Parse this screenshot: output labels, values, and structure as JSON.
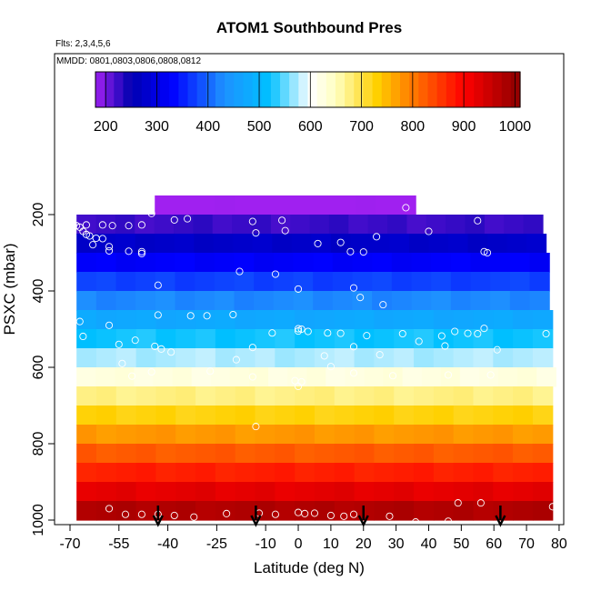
{
  "chart_data": {
    "type": "heatmap",
    "title": "ATOM1 Southbound Pres",
    "flights_note": "Flts: 2,3,4,5,6",
    "dates_note": "MMDD: 0801,0803,0806,0808,0812",
    "xlabel": "Latitude (deg N)",
    "ylabel": "PSXC (mbar)",
    "xlim": [
      -70,
      80
    ],
    "ylim": [
      1000,
      100
    ],
    "x_ticks": [
      -70,
      -55,
      -40,
      -25,
      -10,
      0,
      10,
      20,
      30,
      40,
      50,
      60,
      70,
      80
    ],
    "x_tick_labels": [
      "-70",
      "-55",
      "-40",
      "-25",
      "-10",
      "0",
      "10",
      "20",
      "30",
      "40",
      "50",
      "60",
      "70",
      "80"
    ],
    "y_ticks": [
      200,
      400,
      600,
      800,
      1000
    ],
    "y_tick_labels": [
      "200",
      "400",
      "600",
      "800",
      "1000"
    ],
    "colorbar": {
      "range": [
        180,
        1010
      ],
      "ticks": [
        200,
        300,
        400,
        500,
        600,
        700,
        800,
        900,
        1000
      ],
      "tick_labels": [
        "200",
        "300",
        "400",
        "500",
        "600",
        "700",
        "800",
        "900",
        "1000"
      ],
      "stops": [
        [
          180,
          "#a020f0"
        ],
        [
          250,
          "#0000b0"
        ],
        [
          330,
          "#0000ff"
        ],
        [
          430,
          "#1e90ff"
        ],
        [
          520,
          "#00c0ff"
        ],
        [
          600,
          "#ffffff"
        ],
        [
          650,
          "#ffffc0"
        ],
        [
          730,
          "#ffd000"
        ],
        [
          820,
          "#ff6000"
        ],
        [
          900,
          "#ff0000"
        ],
        [
          1010,
          "#8b0000"
        ]
      ]
    },
    "bands": [
      {
        "p_lo": 150,
        "p_hi": 200,
        "lat_lo": -44,
        "lat_hi": 36
      },
      {
        "p_lo": 200,
        "p_hi": 250,
        "lat_lo": -68,
        "lat_hi": 75
      },
      {
        "p_lo": 250,
        "p_hi": 300,
        "lat_lo": -68,
        "lat_hi": 76
      },
      {
        "p_lo": 300,
        "p_hi": 350,
        "lat_lo": -68,
        "lat_hi": 77
      },
      {
        "p_lo": 350,
        "p_hi": 400,
        "lat_lo": -68,
        "lat_hi": 77
      },
      {
        "p_lo": 400,
        "p_hi": 450,
        "lat_lo": -68,
        "lat_hi": 77
      },
      {
        "p_lo": 450,
        "p_hi": 500,
        "lat_lo": -68,
        "lat_hi": 78
      },
      {
        "p_lo": 500,
        "p_hi": 550,
        "lat_lo": -68,
        "lat_hi": 78
      },
      {
        "p_lo": 550,
        "p_hi": 600,
        "lat_lo": -68,
        "lat_hi": 78
      },
      {
        "p_lo": 600,
        "p_hi": 650,
        "lat_lo": -68,
        "lat_hi": 79
      },
      {
        "p_lo": 650,
        "p_hi": 700,
        "lat_lo": -68,
        "lat_hi": 78
      },
      {
        "p_lo": 700,
        "p_hi": 750,
        "lat_lo": -68,
        "lat_hi": 78
      },
      {
        "p_lo": 750,
        "p_hi": 800,
        "lat_lo": -68,
        "lat_hi": 78
      },
      {
        "p_lo": 800,
        "p_hi": 850,
        "lat_lo": -68,
        "lat_hi": 78
      },
      {
        "p_lo": 850,
        "p_hi": 900,
        "lat_lo": -68,
        "lat_hi": 78
      },
      {
        "p_lo": 900,
        "p_hi": 950,
        "lat_lo": -68,
        "lat_hi": 78
      },
      {
        "p_lo": 950,
        "p_hi": 1000,
        "lat_lo": -68,
        "lat_hi": 78
      }
    ],
    "points": [
      [
        -45,
        197
      ],
      [
        33,
        182
      ],
      [
        -65,
        227
      ],
      [
        -60,
        227
      ],
      [
        -57,
        229
      ],
      [
        -52,
        229
      ],
      [
        -48,
        227
      ],
      [
        -38,
        214
      ],
      [
        -34,
        211
      ],
      [
        -14,
        218
      ],
      [
        -5,
        215
      ],
      [
        55,
        216
      ],
      [
        -13,
        248
      ],
      [
        -4,
        242
      ],
      [
        6,
        276
      ],
      [
        13,
        273
      ],
      [
        16,
        297
      ],
      [
        20,
        298
      ],
      [
        24,
        258
      ],
      [
        40,
        244
      ],
      [
        57,
        297
      ],
      [
        58,
        300
      ],
      [
        -63,
        279
      ],
      [
        -58,
        284
      ],
      [
        -58,
        295
      ],
      [
        -52,
        296
      ],
      [
        -48,
        297
      ],
      [
        -69,
        225
      ],
      [
        -68,
        229
      ],
      [
        -67,
        233
      ],
      [
        -66,
        244
      ],
      [
        -65,
        252
      ],
      [
        -64,
        256
      ],
      [
        -62,
        262
      ],
      [
        -60,
        263
      ],
      [
        -48,
        302
      ],
      [
        -18,
        349
      ],
      [
        -7,
        356
      ],
      [
        17,
        392
      ],
      [
        19,
        417
      ],
      [
        0,
        395
      ],
      [
        -43,
        385
      ],
      [
        -43,
        463
      ],
      [
        -33,
        465
      ],
      [
        -28,
        465
      ],
      [
        -20,
        462
      ],
      [
        0,
        499
      ],
      [
        26,
        436
      ],
      [
        -67,
        480
      ],
      [
        -58,
        490
      ],
      [
        -66,
        519
      ],
      [
        -50,
        529
      ],
      [
        -55,
        540
      ],
      [
        -44,
        545
      ],
      [
        -39,
        560
      ],
      [
        -42,
        552
      ],
      [
        -19,
        580
      ],
      [
        -14,
        548
      ],
      [
        -8,
        510
      ],
      [
        3,
        506
      ],
      [
        9,
        510
      ],
      [
        13,
        511
      ],
      [
        1,
        500
      ],
      [
        0,
        505
      ],
      [
        21,
        517
      ],
      [
        32,
        512
      ],
      [
        44,
        518
      ],
      [
        48,
        506
      ],
      [
        45,
        544
      ],
      [
        52,
        511
      ],
      [
        55,
        512
      ],
      [
        57,
        498
      ],
      [
        61,
        554
      ],
      [
        76,
        512
      ],
      [
        37,
        532
      ],
      [
        25,
        567
      ],
      [
        17,
        546
      ],
      [
        8,
        570
      ],
      [
        10,
        598
      ],
      [
        17,
        615
      ],
      [
        29,
        622
      ],
      [
        46,
        620
      ],
      [
        59,
        620
      ],
      [
        -54,
        590
      ],
      [
        -51,
        623
      ],
      [
        -45,
        612
      ],
      [
        -27,
        610
      ],
      [
        -14,
        625
      ],
      [
        -1,
        635
      ],
      [
        1,
        638
      ],
      [
        0,
        650
      ],
      [
        -13,
        755
      ],
      [
        -70,
        975
      ],
      [
        -58,
        970
      ],
      [
        -53,
        985
      ],
      [
        -48,
        985
      ],
      [
        -43,
        985
      ],
      [
        -38,
        988
      ],
      [
        -32,
        992
      ],
      [
        -22,
        983
      ],
      [
        -12,
        982
      ],
      [
        -7,
        985
      ],
      [
        0,
        980
      ],
      [
        2,
        983
      ],
      [
        5,
        982
      ],
      [
        10,
        988
      ],
      [
        14,
        990
      ],
      [
        17,
        985
      ],
      [
        28,
        990
      ],
      [
        36,
        1005
      ],
      [
        46,
        1003
      ],
      [
        49,
        955
      ],
      [
        56,
        955
      ],
      [
        78,
        965
      ]
    ],
    "arrows": [
      -43,
      -13,
      20,
      62
    ]
  }
}
